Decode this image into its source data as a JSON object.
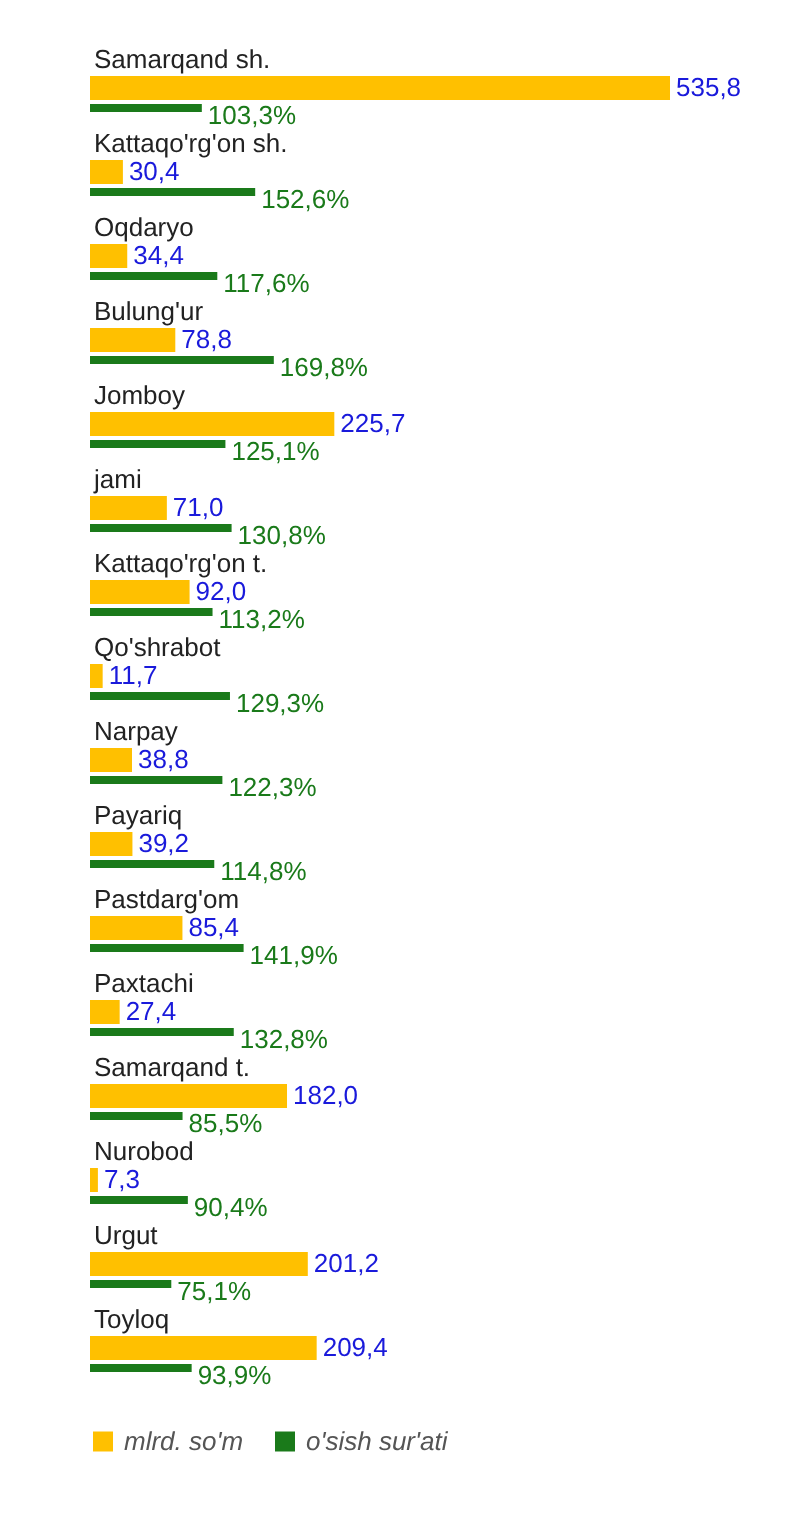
{
  "chart_data": {
    "type": "bar",
    "orientation": "horizontal",
    "legend": "bottom",
    "categories": [
      "Samarqand sh.",
      "Kattaqo'rg'on sh.",
      "Oqdaryo",
      "Bulung'ur",
      "Jomboy",
      "jami",
      "Kattaqo'rg'on t.",
      "Qo'shrabot",
      "Narpay",
      "Payariq",
      "Pastdarg'om",
      "Paxtachi",
      "Samarqand t.",
      "Nurobod",
      "Urgut",
      "Toyloq"
    ],
    "series": [
      {
        "name": "mlrd. so'm",
        "color": "#ffc000",
        "values": [
          535.8,
          30.4,
          34.4,
          78.8,
          225.7,
          71.0,
          92.0,
          11.7,
          38.8,
          39.2,
          85.4,
          27.4,
          182.0,
          7.3,
          201.2,
          209.4
        ],
        "value_labels": [
          "535,8",
          "30,4",
          "34,4",
          "78,8",
          "225,7",
          "71,0",
          "92,0",
          "11,7",
          "38,8",
          "39,2",
          "85,4",
          "27,4",
          "182,0",
          "7,3",
          "201,2",
          "209,4"
        ]
      },
      {
        "name": "o'sish sur'ati",
        "color": "#1a7a1a",
        "values": [
          103.3,
          152.6,
          117.6,
          169.8,
          125.1,
          130.8,
          113.2,
          129.3,
          122.3,
          114.8,
          141.9,
          132.8,
          85.5,
          90.4,
          75.1,
          93.9
        ],
        "value_labels": [
          "103,3%",
          "152,6%",
          "117,6%",
          "169,8%",
          "125,1%",
          "130,8%",
          "113,2%",
          "129,3%",
          "122,3%",
          "114,8%",
          "141,9%",
          "132,8%",
          "85,5%",
          "90,4%",
          "75,1%",
          "93,9%"
        ]
      }
    ]
  }
}
